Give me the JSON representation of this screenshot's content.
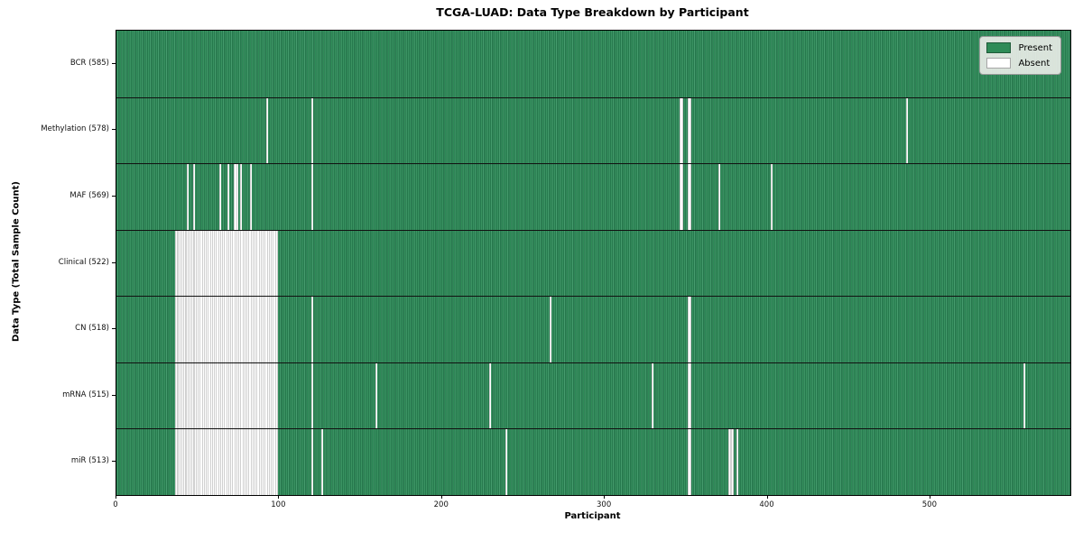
{
  "chart_data": {
    "type": "heatmap",
    "title": "TCGA-LUAD: Data Type Breakdown by Participant",
    "xlabel": "Participant",
    "ylabel": "Data Type (Total Sample Count)",
    "x_range": [
      0,
      586
    ],
    "x_ticks": [
      0,
      100,
      200,
      300,
      400,
      500
    ],
    "x_tick_labels": [
      "0",
      "100",
      "200",
      "300",
      "400",
      "500"
    ],
    "grid": false,
    "legend_position": "upper right",
    "colors": {
      "present": "#2e8b57",
      "absent": "#ffffff"
    },
    "legend": [
      {
        "label": "Present",
        "color": "#2e8b57"
      },
      {
        "label": "Absent",
        "color": "#ffffff"
      }
    ],
    "rows": [
      {
        "name": "BCR",
        "sample_count": 585,
        "label": "BCR (585)",
        "absent_ranges": []
      },
      {
        "name": "Methylation",
        "sample_count": 578,
        "label": "Methylation (578)",
        "absent_ranges": [
          [
            92,
            92
          ],
          [
            120,
            120
          ],
          [
            346,
            347
          ],
          [
            351,
            352
          ],
          [
            485,
            485
          ]
        ]
      },
      {
        "name": "MAF",
        "sample_count": 569,
        "label": "MAF (569)",
        "absent_ranges": [
          [
            43,
            43
          ],
          [
            47,
            47
          ],
          [
            63,
            63
          ],
          [
            68,
            68
          ],
          [
            72,
            74
          ],
          [
            76,
            76
          ],
          [
            82,
            82
          ],
          [
            120,
            120
          ],
          [
            346,
            347
          ],
          [
            351,
            352
          ],
          [
            370,
            370
          ],
          [
            402,
            402
          ]
        ]
      },
      {
        "name": "Clinical",
        "sample_count": 522,
        "label": "Clinical (522)",
        "absent_ranges": [
          [
            36,
            98
          ]
        ]
      },
      {
        "name": "CN",
        "sample_count": 518,
        "label": "CN (518)",
        "absent_ranges": [
          [
            36,
            98
          ],
          [
            120,
            120
          ],
          [
            266,
            266
          ],
          [
            351,
            352
          ]
        ]
      },
      {
        "name": "mRNA",
        "sample_count": 515,
        "label": "mRNA (515)",
        "absent_ranges": [
          [
            36,
            98
          ],
          [
            120,
            120
          ],
          [
            159,
            159
          ],
          [
            229,
            229
          ],
          [
            329,
            329
          ],
          [
            351,
            352
          ],
          [
            557,
            557
          ]
        ]
      },
      {
        "name": "miR",
        "sample_count": 513,
        "label": "miR (513)",
        "absent_ranges": [
          [
            36,
            98
          ],
          [
            120,
            120
          ],
          [
            126,
            126
          ],
          [
            239,
            239
          ],
          [
            351,
            352
          ],
          [
            376,
            378
          ],
          [
            381,
            381
          ]
        ]
      }
    ]
  }
}
